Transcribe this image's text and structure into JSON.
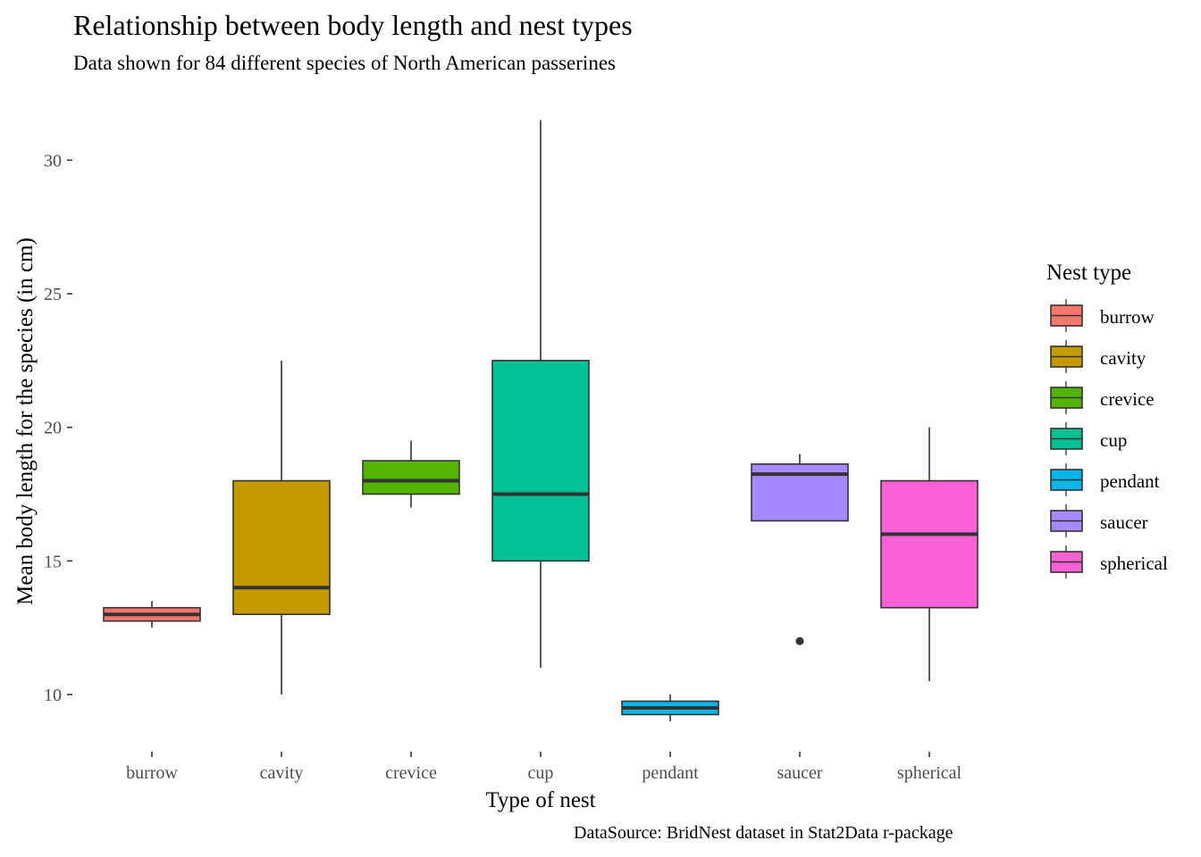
{
  "chart_data": {
    "type": "box",
    "title": "Relationship between body length and nest types",
    "subtitle": "Data shown for 84 different species of North American passerines",
    "caption": "DataSource: BridNest dataset in Stat2Data r-package",
    "xlabel": "Type of nest",
    "ylabel": "Mean body length for the species (in cm)",
    "ylim": [
      8.2,
      32.2
    ],
    "yticks": [
      10,
      15,
      20,
      25,
      30
    ],
    "ytick_labels": [
      "10",
      "15",
      "20",
      "25",
      "30"
    ],
    "grid": false,
    "legend": {
      "title": "Nest type",
      "position": "right"
    },
    "categories": [
      "burrow",
      "cavity",
      "crevice",
      "cup",
      "pendant",
      "saucer",
      "spherical"
    ],
    "colors": [
      "#F8766D",
      "#C49A00",
      "#53B400",
      "#00C094",
      "#00B6EB",
      "#A58AFF",
      "#FB61D7"
    ],
    "boxes": [
      {
        "name": "burrow",
        "min": 12.5,
        "q1": 12.75,
        "median": 13.0,
        "q3": 13.25,
        "max": 13.5,
        "outliers": []
      },
      {
        "name": "cavity",
        "min": 10.0,
        "q1": 13.0,
        "median": 14.0,
        "q3": 18.0,
        "max": 22.5,
        "outliers": []
      },
      {
        "name": "crevice",
        "min": 17.0,
        "q1": 17.5,
        "median": 18.0,
        "q3": 18.75,
        "max": 19.5,
        "outliers": []
      },
      {
        "name": "cup",
        "min": 11.0,
        "q1": 15.0,
        "median": 17.5,
        "q3": 22.5,
        "max": 31.5,
        "outliers": []
      },
      {
        "name": "pendant",
        "min": 9.0,
        "q1": 9.25,
        "median": 9.5,
        "q3": 9.75,
        "max": 10.0,
        "outliers": []
      },
      {
        "name": "saucer",
        "min": 16.5,
        "q1": 16.5,
        "median": 18.25,
        "q3": 18.625,
        "max": 19.0,
        "outliers": [
          12.0
        ]
      },
      {
        "name": "spherical",
        "min": 10.5,
        "q1": 13.25,
        "median": 16.0,
        "q3": 18.0,
        "max": 20.0,
        "outliers": []
      }
    ]
  }
}
